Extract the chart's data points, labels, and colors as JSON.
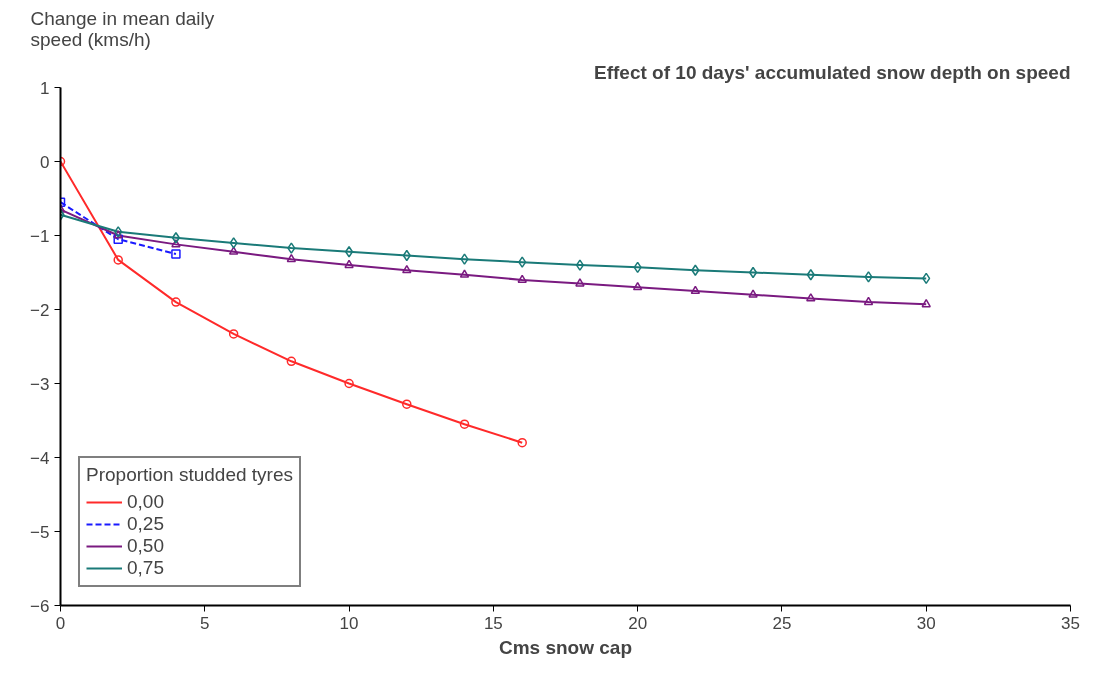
{
  "chart_data": {
    "type": "line",
    "title": "Effect of 10 days' accumulated snow depth on speed",
    "xlabel": "Cms snow cap",
    "ylabel": "Change in mean daily speed (kms/h)",
    "legend_title": "Proportion studded tyres",
    "x": [
      0,
      2,
      4,
      6,
      8,
      10,
      12,
      14,
      16,
      18,
      20,
      22,
      24,
      26,
      28,
      30
    ],
    "series": [
      {
        "name": "0,00",
        "color": "#ff2a2a",
        "marker": "circle",
        "values": [
          0,
          -1.33,
          -1.9,
          -2.33,
          -2.7,
          -3.0,
          -3.28,
          -3.55,
          -3.8,
          null,
          null,
          null,
          null,
          null,
          null,
          null
        ]
      },
      {
        "name": "0,25",
        "color": "#1a1aff",
        "marker": "square",
        "line_style": "dashed",
        "values": [
          -0.55,
          -1.05,
          -1.25,
          null,
          null,
          null,
          null,
          null,
          null,
          null,
          null,
          null,
          null,
          null,
          null,
          null
        ]
      },
      {
        "name": "0,50",
        "color": "#7a1a80",
        "marker": "triangle",
        "values": [
          -0.65,
          -1.0,
          -1.12,
          -1.22,
          -1.32,
          -1.4,
          -1.47,
          -1.53,
          -1.6,
          -1.65,
          -1.7,
          -1.75,
          -1.8,
          -1.85,
          -1.9,
          -1.93
        ]
      },
      {
        "name": "0,75",
        "color": "#1a7a78",
        "marker": "diamond",
        "values": [
          -0.72,
          -0.95,
          -1.03,
          -1.1,
          -1.17,
          -1.22,
          -1.27,
          -1.32,
          -1.36,
          -1.4,
          -1.43,
          -1.47,
          -1.5,
          -1.53,
          -1.56,
          -1.58
        ]
      }
    ],
    "xlim": [
      0,
      35
    ],
    "ylim": [
      -6,
      1
    ],
    "xticks": [
      0,
      5,
      10,
      15,
      20,
      25,
      30,
      35
    ],
    "yticks": [
      -6,
      -5,
      -4,
      -3,
      -2,
      -1,
      0,
      1
    ],
    "grid": false,
    "legend": "bottom left"
  }
}
